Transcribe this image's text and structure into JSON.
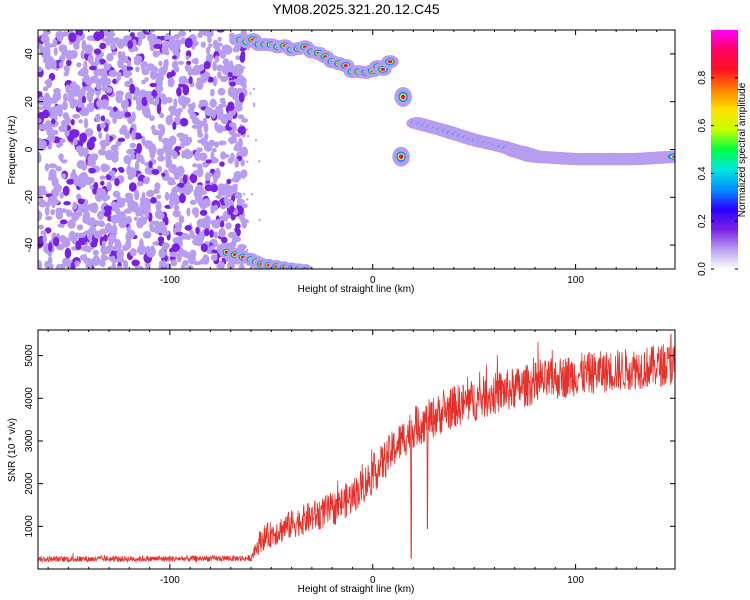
{
  "title": "YM08.2025.321.20.12.C45",
  "chart_data": [
    {
      "type": "heatmap",
      "xlabel": "Height of straight line (km)",
      "ylabel": "Frequency (Hz)",
      "xlim": [
        -165,
        149
      ],
      "ylim": [
        -50,
        50
      ],
      "x_ticks": [
        -100,
        0,
        100
      ],
      "x_tick_labels": [
        "-100",
        "0",
        "100"
      ],
      "y_ticks": [
        -40,
        -20,
        0,
        20,
        40
      ],
      "y_tick_labels": [
        "-40",
        "-20",
        "0",
        "20",
        "40"
      ],
      "grid": false,
      "noise_region_x": [
        -165,
        -65
      ],
      "gap_region_x": [
        -65,
        15
      ],
      "ridge": {
        "description_points": [
          {
            "x": 22,
            "y": 11
          },
          {
            "x": 35,
            "y": 8
          },
          {
            "x": 50,
            "y": 4
          },
          {
            "x": 65,
            "y": 1
          },
          {
            "x": 80,
            "y": -3
          },
          {
            "x": 100,
            "y": -4
          },
          {
            "x": 130,
            "y": -4
          },
          {
            "x": 149,
            "y": -3
          }
        ]
      },
      "upper_branch": [
        {
          "x": -65,
          "y": 46
        },
        {
          "x": -50,
          "y": 45
        },
        {
          "x": -40,
          "y": 43
        },
        {
          "x": -30,
          "y": 42
        },
        {
          "x": -20,
          "y": 38
        },
        {
          "x": -10,
          "y": 34
        },
        {
          "x": 0,
          "y": 33
        },
        {
          "x": 5,
          "y": 34
        },
        {
          "x": 12,
          "y": 40
        }
      ],
      "lower_branch": [
        {
          "x": -72,
          "y": -43
        },
        {
          "x": -60,
          "y": -46
        },
        {
          "x": -55,
          "y": -48
        },
        {
          "x": -40,
          "y": -50
        },
        {
          "x": -30,
          "y": -51
        }
      ],
      "isolated_blobs": [
        {
          "x": 15,
          "y": 22
        },
        {
          "x": 14,
          "y": -3
        }
      ],
      "colorbar": {
        "label": "Normalized spectral amplitude",
        "range": [
          0,
          1
        ],
        "ticks": [
          0.0,
          0.2,
          0.4,
          0.6,
          0.8
        ],
        "tick_labels": [
          "0.0",
          "0.2",
          "0.4",
          "0.6",
          "0.8"
        ],
        "colors": [
          "#ffffff",
          "#b89cf0",
          "#7a1fe6",
          "#2a00ff",
          "#0090ff",
          "#00e8e0",
          "#00ff40",
          "#c8ff00",
          "#ffe000",
          "#ff8000",
          "#ff1020",
          "#ff0060",
          "#ff00ff"
        ]
      }
    },
    {
      "type": "line",
      "xlabel": "Height of straight line (km)",
      "ylabel": "SNR (10 * v/v)",
      "xlim": [
        -165,
        149
      ],
      "ylim": [
        0,
        5600
      ],
      "x_ticks": [
        -100,
        0,
        100
      ],
      "x_tick_labels": [
        "-100",
        "0",
        "100"
      ],
      "y_ticks": [
        1000,
        2000,
        3000,
        4000,
        5000
      ],
      "y_tick_labels": [
        "1000",
        "2000",
        "3000",
        "4000",
        "5000"
      ],
      "grid": false,
      "series": [
        {
          "color": "#e8302a",
          "trend": {
            "x": [
              -165,
              -100,
              -60,
              -55,
              -40,
              -20,
              -10,
              0,
              10,
              20,
              40,
              60,
              80,
              100,
              120,
              149
            ],
            "y": [
              230,
              240,
              250,
              700,
              1050,
              1400,
              1700,
              2200,
              2800,
              3300,
              3800,
              4100,
              4350,
              4550,
              4650,
              4800
            ]
          },
          "noise_amplitude": {
            "x": [
              -165,
              -60,
              -55,
              0,
              40,
              149
            ],
            "y": [
              70,
              70,
              300,
              450,
              500,
              500
            ]
          },
          "spikes": [
            {
              "x": 19,
              "y": 250
            },
            {
              "x": 27,
              "y": 950
            },
            {
              "x": 147,
              "y": 5500
            }
          ]
        }
      ]
    }
  ]
}
